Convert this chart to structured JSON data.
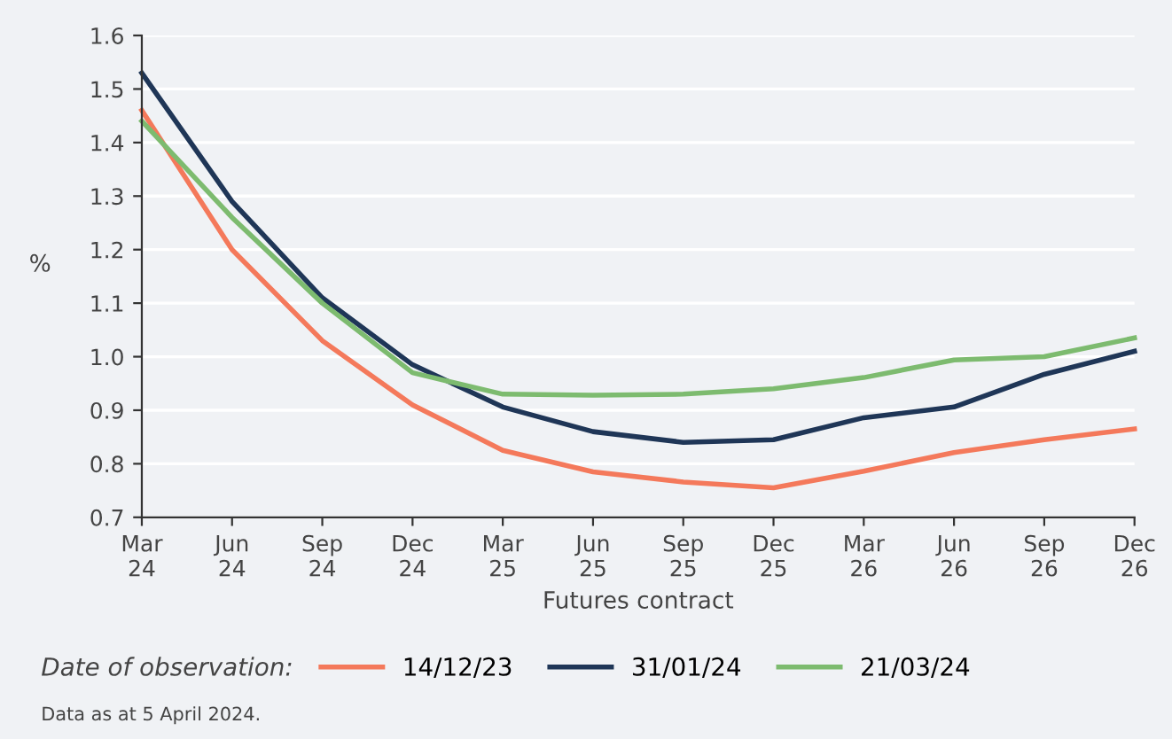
{
  "chart_data": {
    "type": "line",
    "categories": [
      "Mar\n24",
      "Jun\n24",
      "Sep\n24",
      "Dec\n24",
      "Mar\n25",
      "Jun\n25",
      "Sep\n25",
      "Dec\n25",
      "Mar\n26",
      "Jun\n26",
      "Sep\n26",
      "Dec\n26"
    ],
    "xlabel": "Futures contract",
    "ylabel": "%",
    "legend_title": "Date of observation:",
    "series": [
      {
        "name": "14/12/23",
        "color": "#f4795b",
        "values": [
          1.46,
          1.2,
          1.03,
          0.91,
          0.825,
          0.785,
          0.766,
          0.755,
          0.786,
          0.821,
          0.845,
          0.865
        ]
      },
      {
        "name": "31/01/24",
        "color": "#1f3657",
        "values": [
          1.53,
          1.29,
          1.11,
          0.985,
          0.906,
          0.86,
          0.84,
          0.845,
          0.886,
          0.906,
          0.967,
          1.01
        ]
      },
      {
        "name": "21/03/24",
        "color": "#7dbb6f",
        "values": [
          1.44,
          1.26,
          1.1,
          0.97,
          0.93,
          0.928,
          0.93,
          0.94,
          0.961,
          0.994,
          1.0,
          1.035
        ]
      }
    ],
    "ylim": [
      0.7,
      1.6
    ],
    "yticks": [
      {
        "value": 0.7,
        "label": "0.7"
      },
      {
        "value": 0.8,
        "label": "0.8"
      },
      {
        "value": 0.9,
        "label": "0.9"
      },
      {
        "value": 1.0,
        "label": "1.0"
      },
      {
        "value": 1.1,
        "label": "1.1"
      },
      {
        "value": 1.2,
        "label": "1.2"
      },
      {
        "value": 1.3,
        "label": "1.3"
      },
      {
        "value": 1.4,
        "label": "1.4"
      },
      {
        "value": 1.5,
        "label": "1.5"
      },
      {
        "value": 1.6,
        "label": "1.6"
      }
    ],
    "grid": "y",
    "legend": "bottom",
    "marker": "none",
    "line_style": "solid",
    "annotations": [
      "Data as at 5 April 2024."
    ]
  }
}
